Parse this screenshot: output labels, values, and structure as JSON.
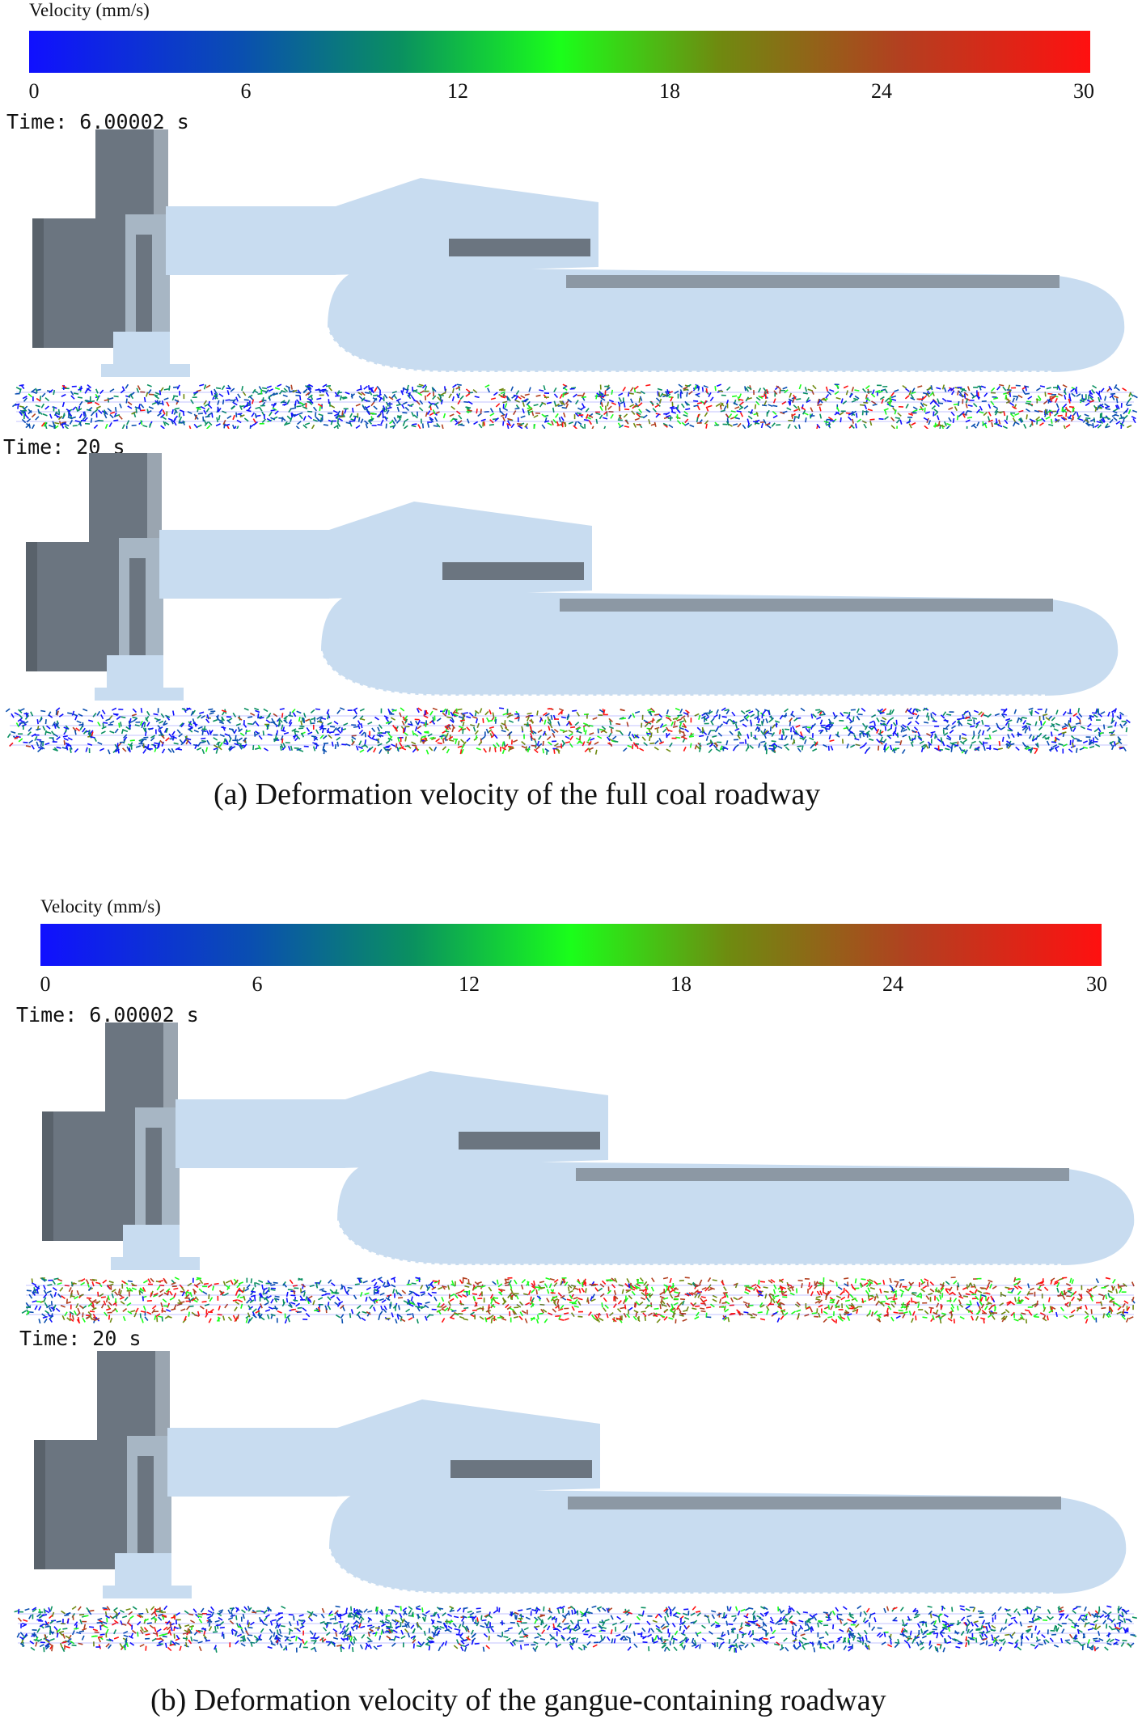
{
  "panels": [
    {
      "colorbar": {
        "title": "Velocity (mm/s)",
        "ticks": [
          "0",
          "6",
          "12",
          "18",
          "24",
          "30"
        ]
      },
      "snapshots": [
        {
          "time_label": "Time: 6.00002 s",
          "hot_zones": [
            {
              "start": 0.36,
              "end": 0.95,
              "level": 0.45
            }
          ]
        },
        {
          "time_label": "Time: 20 s",
          "hot_zones": [
            {
              "start": 0.34,
              "end": 0.62,
              "level": 0.7
            }
          ]
        }
      ],
      "caption": "(a) Deformation velocity of the full coal roadway"
    },
    {
      "colorbar": {
        "title": "Velocity (mm/s)",
        "ticks": [
          "0",
          "6",
          "12",
          "18",
          "24",
          "30"
        ]
      },
      "snapshots": [
        {
          "time_label": "Time: 6.00002 s",
          "hot_zones": [
            {
              "start": 0.03,
              "end": 0.2,
              "level": 0.9
            },
            {
              "start": 0.37,
              "end": 1.0,
              "level": 0.95
            }
          ]
        },
        {
          "time_label": "Time: 20 s",
          "hot_zones": [
            {
              "start": 0.03,
              "end": 0.17,
              "level": 0.6
            }
          ]
        }
      ],
      "caption": "(b) Deformation velocity of the gangue-containing roadway"
    }
  ],
  "colors": {
    "machine_body": "#c8dcf0",
    "machine_dark": "#6b7580",
    "colormap": [
      "#1010ff",
      "#0a4fb0",
      "#0a9060",
      "#1aff1a",
      "#6f8a10",
      "#b24020",
      "#ff1010"
    ]
  }
}
